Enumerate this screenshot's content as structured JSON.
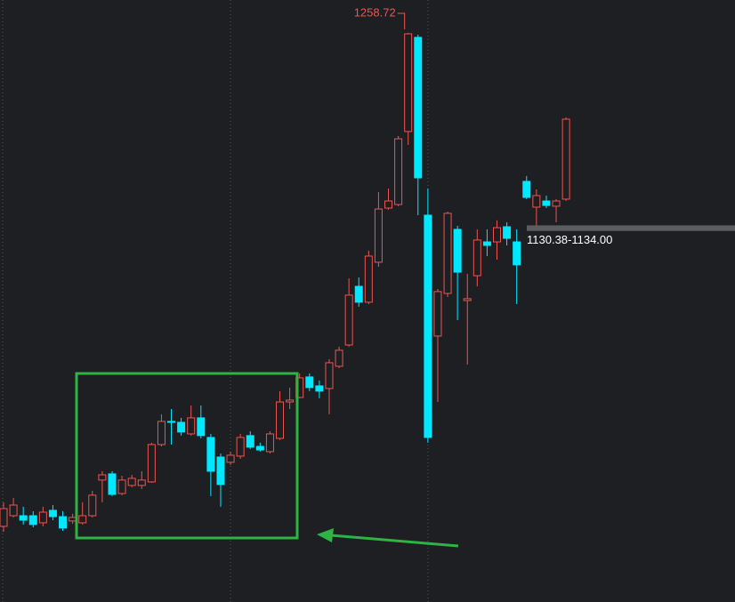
{
  "chart_data": {
    "type": "candlestick",
    "up_color": "#ef5350",
    "down_color": "#00e8ff",
    "ylim": [
      890,
      1280
    ],
    "open": [
      939.0,
      945.9,
      945.9,
      945.9,
      941.3,
      949.4,
      945.3,
      942.5,
      941.3,
      945.9,
      969.0,
      973.0,
      960.3,
      965.5,
      965.5,
      967.8,
      992.0,
      1007.0,
      1006.4,
      998.9,
      1009.3,
      996.6,
      983.9,
      980.5,
      984.5,
      997.8,
      990.8,
      987.4,
      996.0,
      1019.6,
      1022.5,
      1035.8,
      1030.0,
      1028.3,
      1042.7,
      1056.5,
      1094.5,
      1084.2,
      1110.1,
      1145.2,
      1147.5,
      1194.8,
      1255.8,
      1140.6,
      1062.3,
      1089.9,
      1131.4,
      1085.3,
      1101.4,
      1123.3,
      1123.3,
      1133.1,
      1123.3,
      1162.5,
      1145.8,
      1149.8,
      1146.4,
      1151.0
    ],
    "high": [
      954.6,
      957.4,
      951.7,
      948.8,
      951.7,
      952.8,
      948.8,
      947.1,
      954.6,
      962.0,
      974.7,
      974.7,
      971.8,
      972.4,
      974.7,
      993.2,
      1011.6,
      1015.0,
      1009.3,
      1017.3,
      1017.3,
      998.9,
      986.2,
      987.4,
      998.9,
      1000.6,
      993.2,
      1000.6,
      1026.6,
      1028.9,
      1038.1,
      1038.1,
      1033.5,
      1047.3,
      1055.4,
      1099.7,
      1100.3,
      1117.6,
      1155.6,
      1157.9,
      1191.9,
      1258.72,
      1257.5,
      1157.9,
      1092.8,
      1142.9,
      1133.7,
      1102.6,
      1131.4,
      1131.4,
      1137.2,
      1136.0,
      1131.4,
      1166.0,
      1157.3,
      1153.3,
      1151.0,
      1204.0
    ],
    "low": [
      935.5,
      944.8,
      940.2,
      938.4,
      939.0,
      943.0,
      936.1,
      940.7,
      940.2,
      944.8,
      954.6,
      958.6,
      959.2,
      964.4,
      963.2,
      967.2,
      990.8,
      992.0,
      997.8,
      997.8,
      996.0,
      958.6,
      951.7,
      978.8,
      982.8,
      989.1,
      987.4,
      986.2,
      994.9,
      1015.0,
      1022.0,
      1026.6,
      1022.0,
      1011.6,
      1041.5,
      1055.4,
      1081.3,
      1083.0,
      1107.2,
      1144.1,
      1146.4,
      1186.1,
      1140.6,
      993.2,
      1019.6,
      1087.6,
      1072.6,
      1043.8,
      1094.5,
      1114.1,
      1111.8,
      1121.0,
      1083.0,
      1151.0,
      1133.7,
      1145.2,
      1136.0,
      1149.8
    ],
    "close": [
      950.5,
      952.8,
      943.0,
      940.2,
      948.2,
      945.3,
      937.9,
      944.8,
      945.9,
      959.2,
      972.4,
      959.7,
      969.0,
      970.1,
      969.0,
      992.0,
      1007.0,
      1006.4,
      1000.1,
      1009.3,
      997.8,
      974.7,
      966.1,
      985.1,
      996.6,
      990.3,
      988.5,
      998.9,
      1019.6,
      1020.8,
      1035.2,
      1028.9,
      1026.6,
      1045.0,
      1053.1,
      1088.8,
      1084.2,
      1114.1,
      1144.6,
      1149.8,
      1190.1,
      1258.1,
      1164.8,
      996.6,
      1091.1,
      1141.8,
      1103.7,
      1086.5,
      1124.5,
      1121.0,
      1132.5,
      1125.6,
      1108.4,
      1152.1,
      1153.3,
      1146.9,
      1149.8,
      1202.8
    ],
    "range_band": {
      "low": 1130.38,
      "high": 1134.0,
      "label": "1130.38-1134.00"
    }
  }
}
